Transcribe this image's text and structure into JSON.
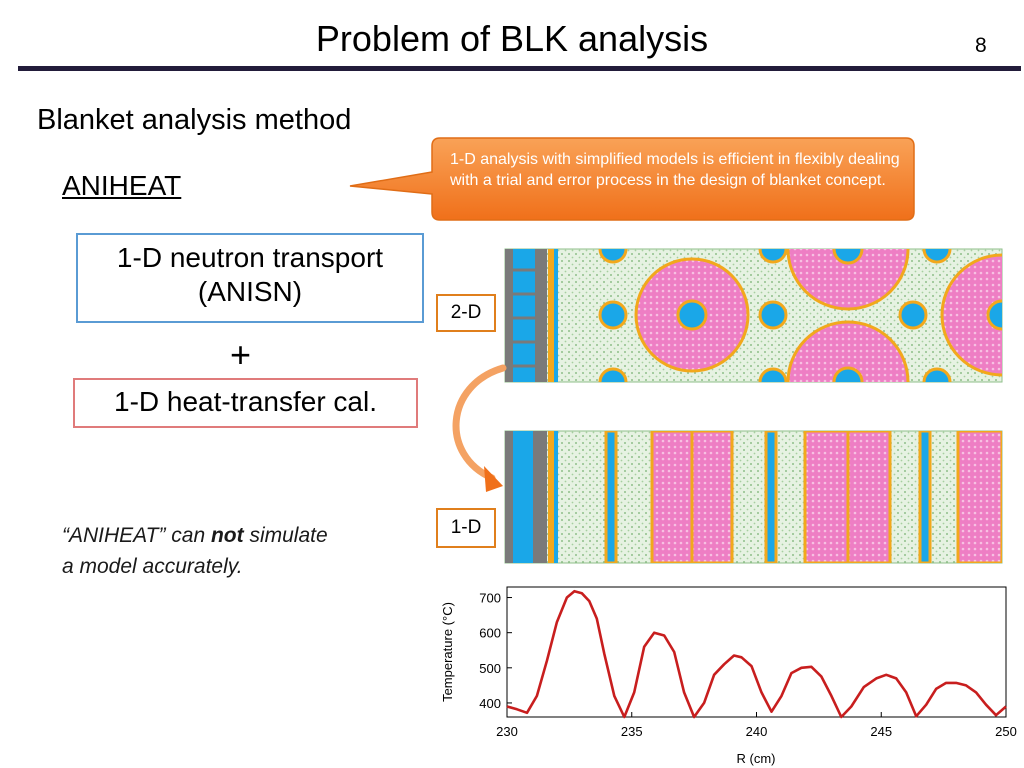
{
  "slide": {
    "title": "Problem of BLK analysis",
    "page_number": "8",
    "subtitle": "Blanket analysis method",
    "method_name": "ANIHEAT",
    "callout": "1-D analysis with simplified models is efficient in flexibly dealing with a trial and error process in the design of blanket concept.",
    "box_neutron": {
      "line1": "1-D neutron transport",
      "line2": "(ANISN)"
    },
    "plus": "+",
    "box_heat": "1-D heat-transfer cal.",
    "label_2d": "2-D",
    "label_1d": "1-D",
    "note": {
      "before": "“ANIHEAT” can ",
      "emphasis": "not",
      "after": " simulate",
      "line2": "a model accurately."
    }
  },
  "colors": {
    "title_rule": "#221c3a",
    "callout_fill": "#f27a1e",
    "neutron_box_border": "#5a9bd4",
    "heat_box_border": "#e07b7b",
    "tag_border": "#e07f1c",
    "coolant_blue": "#1aa7e8",
    "breeder_pink": "#ee7ec4",
    "multiplier_green": "#d8ecd8",
    "steel_orange": "#f2a81c",
    "first_wall_gray": "#7a7a7a",
    "curve_red": "#c81e1e"
  },
  "chart_data": {
    "type": "line",
    "title": "",
    "xlabel": "R (cm)",
    "ylabel": "Temperature (°C)",
    "xlim": [
      230,
      250
    ],
    "ylim": [
      360,
      730
    ],
    "x_ticks": [
      230,
      235,
      240,
      245,
      250
    ],
    "y_ticks": [
      400,
      500,
      600,
      700
    ],
    "grid": false,
    "series": [
      {
        "x": [
          230.0,
          230.4,
          230.8,
          231.2,
          231.6,
          232.0,
          232.4,
          232.7,
          233.0,
          233.3,
          233.6,
          233.9,
          234.3,
          234.7,
          235.1,
          235.5,
          235.9,
          236.3,
          236.7,
          237.1,
          237.5,
          237.9,
          238.3,
          238.7,
          239.1,
          239.4,
          239.8,
          240.2,
          240.6,
          241.0,
          241.4,
          241.8,
          242.2,
          242.6,
          243.0,
          243.4,
          243.8,
          244.3,
          244.8,
          245.2,
          245.6,
          246.0,
          246.4,
          246.8,
          247.2,
          247.6,
          248.0,
          248.4,
          248.8,
          249.2,
          249.6,
          250.0
        ],
        "y": [
          390,
          382,
          372,
          420,
          520,
          630,
          700,
          718,
          712,
          690,
          640,
          540,
          420,
          360,
          430,
          560,
          600,
          592,
          545,
          430,
          360,
          400,
          480,
          510,
          535,
          530,
          505,
          430,
          375,
          420,
          485,
          500,
          503,
          475,
          420,
          360,
          390,
          445,
          470,
          480,
          470,
          430,
          362,
          395,
          440,
          457,
          457,
          450,
          430,
          395,
          365,
          390
        ]
      }
    ]
  }
}
